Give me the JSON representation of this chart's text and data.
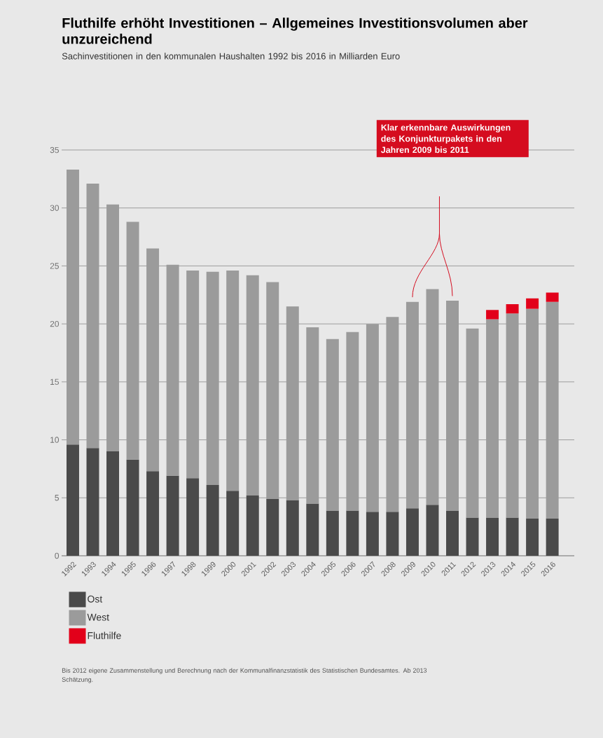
{
  "chart_data": {
    "type": "bar",
    "stacked": true,
    "title": "Fluthilfe erhöht Investitionen – Allgemeines Investitionsvolumen aber unzureichend",
    "subtitle": "Sachinvestitionen in den kommunalen Haushalten 1992 bis 2016 in Milliarden Euro",
    "categories": [
      "1992",
      "1993",
      "1994",
      "1995",
      "1996",
      "1997",
      "1998",
      "1999",
      "2000",
      "2001",
      "2002",
      "2003",
      "2004",
      "2005",
      "2006",
      "2007",
      "2008",
      "2009",
      "2010",
      "2011",
      "2012",
      "2013",
      "2014",
      "2015",
      "2016"
    ],
    "series": [
      {
        "name": "Ost",
        "color": "#4a4a4a",
        "values": [
          9.6,
          9.3,
          9.0,
          8.3,
          7.3,
          6.9,
          6.7,
          6.1,
          5.6,
          5.2,
          4.9,
          4.8,
          4.5,
          3.9,
          3.9,
          3.8,
          3.8,
          4.1,
          4.4,
          3.9,
          3.3,
          3.3,
          3.3,
          3.2,
          3.2
        ]
      },
      {
        "name": "West",
        "color": "#9b9b9b",
        "values": [
          23.7,
          22.8,
          21.3,
          20.5,
          19.2,
          18.2,
          17.9,
          18.4,
          19.0,
          19.0,
          18.7,
          16.7,
          15.2,
          14.8,
          15.4,
          16.2,
          16.8,
          17.8,
          18.6,
          18.1,
          16.3,
          17.1,
          17.6,
          18.1,
          18.7
        ]
      },
      {
        "name": "Fluthilfe",
        "color": "#e2001a",
        "values": [
          null,
          null,
          null,
          null,
          null,
          null,
          null,
          null,
          null,
          null,
          null,
          null,
          null,
          null,
          null,
          null,
          null,
          null,
          null,
          null,
          null,
          0.8,
          0.8,
          0.9,
          0.8
        ]
      }
    ],
    "ylim": [
      0,
      35
    ],
    "yticks": [
      0,
      5,
      10,
      15,
      20,
      25,
      30,
      35
    ],
    "grid": "y",
    "legend": "bottom left",
    "annotations": [
      "Klar erkennbare Auswirkungen des Konjunkturpakets in den Jahren 2009 bis 2011",
      "Bis 2012 eigene Zusammenstellung und Berechnung nach der Kommunalfinanzstatistik des Statistischen Bundesamtes. Ab 2013 Schätzung."
    ]
  }
}
